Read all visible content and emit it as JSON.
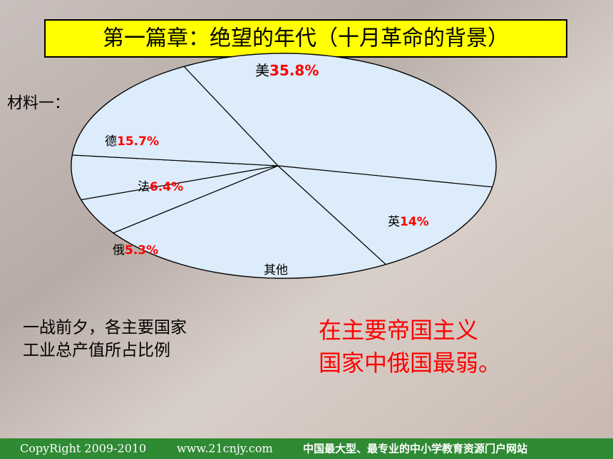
{
  "chart_data": {
    "type": "pie",
    "title": "第一篇章：绝望的年代（十月革命的背景）",
    "categories": [
      "美",
      "英",
      "其他",
      "俄",
      "法",
      "德"
    ],
    "values": [
      35.8,
      14,
      22.8,
      5.3,
      6.4,
      15.7
    ],
    "value_labels": [
      "35.8%",
      "14%",
      null,
      "5.3%",
      "6.4%",
      "15.7%"
    ],
    "color": "#dcecfa"
  },
  "material_label": "材料一：",
  "caption": [
    "一战前夕，各主要国家",
    "工业总产值所占比例"
  ],
  "conclusion": [
    "在主要帝国主义",
    "国家中俄国最弱。"
  ],
  "footer": {
    "copyright": "CopyRight 2009-2010",
    "site": "www.21cnjy.com",
    "slogan": "中国最大型、最专业的中小学教育资源门户网站"
  }
}
